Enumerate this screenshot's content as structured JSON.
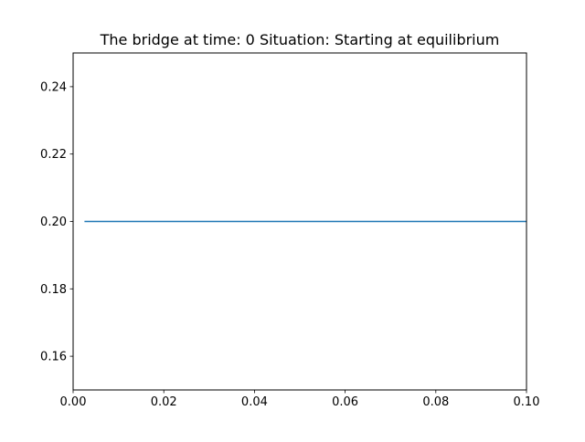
{
  "chart_data": {
    "type": "line",
    "title": "The bridge at time: 0 Situation: Starting at equilibrium",
    "xlabel": "",
    "ylabel": "",
    "xlim": [
      0.0,
      0.1
    ],
    "ylim": [
      0.15,
      0.25
    ],
    "xticks": [
      0.0,
      0.02,
      0.04,
      0.06,
      0.08,
      0.1
    ],
    "xtick_labels": [
      "0.00",
      "0.02",
      "0.04",
      "0.06",
      "0.08",
      "0.10"
    ],
    "yticks": [
      0.16,
      0.18,
      0.2,
      0.22,
      0.24
    ],
    "ytick_labels": [
      "0.16",
      "0.18",
      "0.20",
      "0.22",
      "0.24"
    ],
    "grid": false,
    "series": [
      {
        "color": "#1f77b4",
        "x": [
          0.0025,
          0.1
        ],
        "y": [
          0.2,
          0.2
        ]
      }
    ]
  }
}
